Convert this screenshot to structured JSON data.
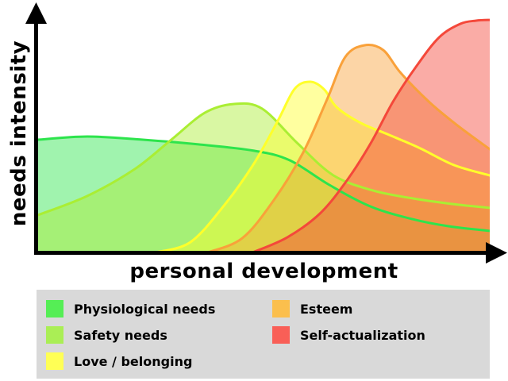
{
  "chart_data": {
    "type": "area",
    "xlabel": "personal development",
    "ylabel": "needs intensity",
    "xlim": [
      0,
      100
    ],
    "ylim": [
      0,
      100
    ],
    "grid": false,
    "axes_color": "#000000",
    "legend_position": "bottom",
    "legend_background": "#d9d9d9",
    "series": [
      {
        "name": "Physiological needs",
        "stroke": "#2de44c",
        "fill_rgba": "rgba(45,228,76,0.45)",
        "swatch": "#55ee55",
        "points": [
          [
            0,
            46.1
          ],
          [
            10.9,
            47.4
          ],
          [
            23.2,
            46.1
          ],
          [
            35.5,
            44.2
          ],
          [
            47.8,
            41.6
          ],
          [
            55.7,
            37.7
          ],
          [
            64.5,
            27.6
          ],
          [
            73.6,
            18.8
          ],
          [
            82.9,
            13.6
          ],
          [
            90.9,
            10.7
          ],
          [
            100,
            8.8
          ]
        ]
      },
      {
        "name": "Safety needs",
        "stroke": "#aaee33",
        "fill_rgba": "rgba(170,238,51,0.45)",
        "swatch": "#aaee55",
        "points": [
          [
            0,
            15.3
          ],
          [
            10.9,
            23.1
          ],
          [
            21.4,
            34.1
          ],
          [
            29.3,
            45.8
          ],
          [
            36.9,
            57.1
          ],
          [
            43.4,
            60.7
          ],
          [
            49.6,
            58.8
          ],
          [
            57.5,
            44.5
          ],
          [
            65.4,
            31.5
          ],
          [
            74.2,
            25.3
          ],
          [
            82.9,
            22.1
          ],
          [
            91.7,
            19.8
          ],
          [
            100,
            18.2
          ]
        ]
      },
      {
        "name": "Love / belonging",
        "stroke": "#ffff2a",
        "fill_rgba": "rgba(255,255,42,0.45)",
        "swatch": "#ffff55",
        "points": [
          [
            26,
            0
          ],
          [
            33.7,
            4.2
          ],
          [
            41.3,
            19.5
          ],
          [
            47.8,
            36.4
          ],
          [
            53.1,
            53.9
          ],
          [
            56.8,
            66.9
          ],
          [
            60.3,
            69.8
          ],
          [
            63.4,
            66.6
          ],
          [
            66.1,
            59.4
          ],
          [
            71.5,
            52.9
          ],
          [
            77.7,
            48.1
          ],
          [
            84.7,
            42.5
          ],
          [
            92.1,
            35.7
          ],
          [
            100,
            31.5
          ]
        ]
      },
      {
        "name": "Esteem",
        "stroke": "#f9a13a",
        "fill_rgba": "rgba(249,161,58,0.45)",
        "swatch": "#fbbf4d",
        "points": [
          [
            37.6,
            0
          ],
          [
            45.2,
            5.8
          ],
          [
            52.2,
            21.4
          ],
          [
            58.7,
            40.9
          ],
          [
            64,
            62.7
          ],
          [
            68,
            79.9
          ],
          [
            72.2,
            84.7
          ],
          [
            76.4,
            82.8
          ],
          [
            80.3,
            73.4
          ],
          [
            86.5,
            61.7
          ],
          [
            92.6,
            52.3
          ],
          [
            100,
            42.2
          ]
        ]
      },
      {
        "name": "Self-actualization",
        "stroke": "#f4483a",
        "fill_rgba": "rgba(244,72,58,0.45)",
        "swatch": "#f95f57",
        "points": [
          [
            47.5,
            0
          ],
          [
            55.2,
            6.2
          ],
          [
            62.4,
            15.9
          ],
          [
            68.4,
            29.5
          ],
          [
            73.6,
            44.5
          ],
          [
            78.6,
            61.7
          ],
          [
            83.7,
            76
          ],
          [
            88.8,
            88
          ],
          [
            93.5,
            93.5
          ],
          [
            97,
            94.8
          ],
          [
            100,
            95.1
          ]
        ]
      }
    ]
  }
}
